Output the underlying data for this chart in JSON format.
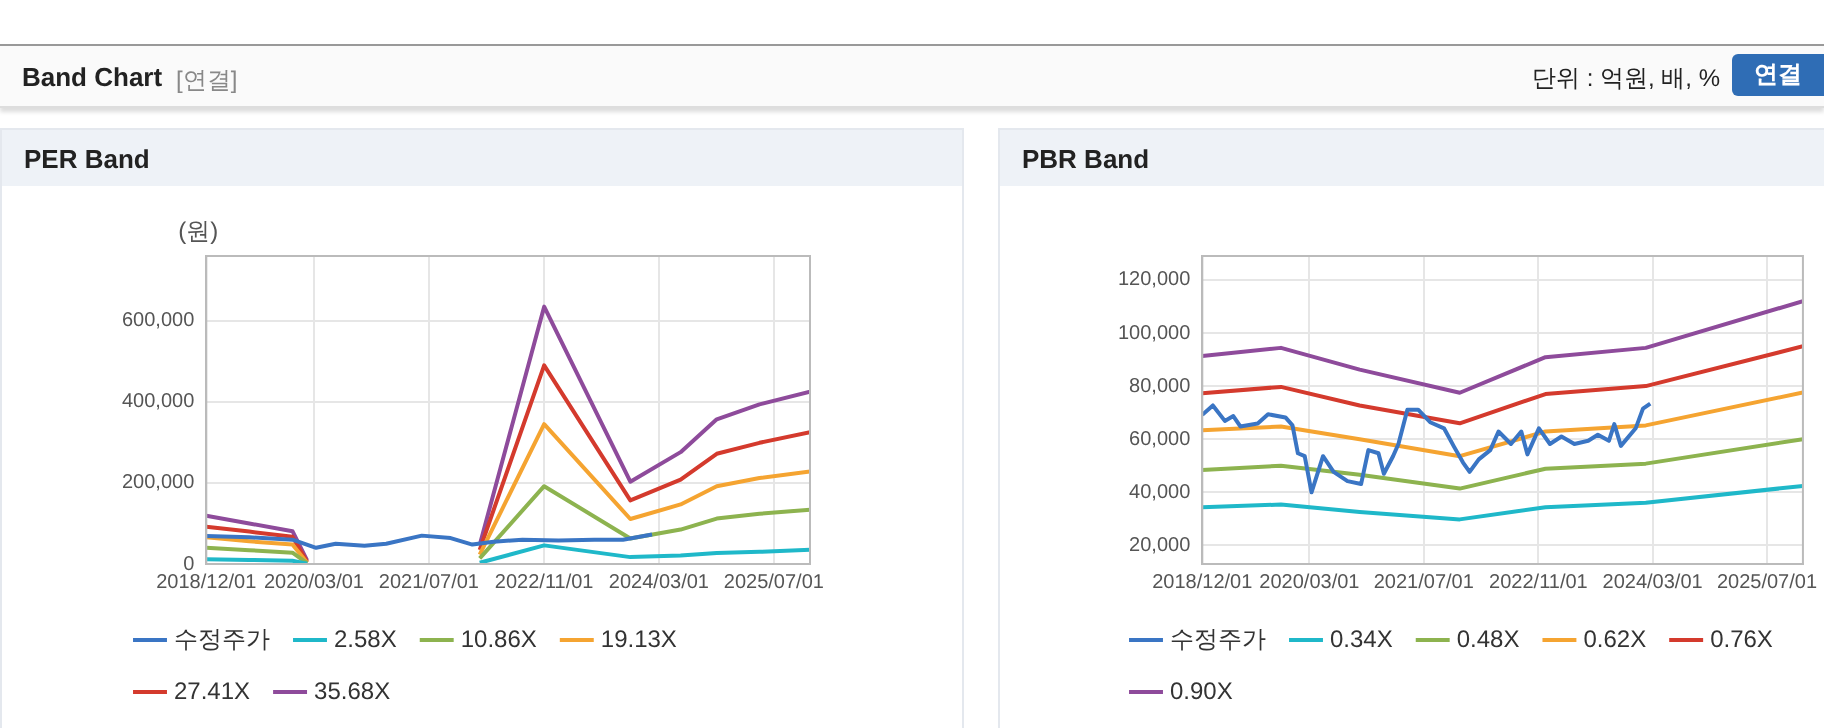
{
  "chart_data": [
    {
      "type": "other",
      "title": "Band Chart",
      "annotations": [
        "[연결]",
        "단위 : 억원, 배, %",
        "연결"
      ]
    },
    {
      "type": "line",
      "title": "PER Band",
      "ylabel": "(원)",
      "xlim": [
        "2018-12-01",
        "2025-12-01"
      ],
      "xticks": [
        {
          "value": "2018-12-01",
          "label": "2018/12/01"
        },
        {
          "value": "2020-03-01",
          "label": "2020/03/01"
        },
        {
          "value": "2021-07-01",
          "label": "2021/07/01"
        },
        {
          "value": "2022-11-01",
          "label": "2022/11/01"
        },
        {
          "value": "2024-03-01",
          "label": "2024/03/01"
        },
        {
          "value": "2025-07-01",
          "label": "2025/07/01"
        }
      ],
      "ylim": [
        0,
        760000
      ],
      "yticks": [
        0,
        {
          "value": 200000,
          "label": "200,000"
        },
        {
          "value": 400000,
          "label": "400,000"
        },
        {
          "value": 600000,
          "label": "600,000"
        }
      ],
      "grid": true,
      "legend": "bottom",
      "marker": "none",
      "series": [
        {
          "name": "수정주가",
          "color": "#3a75c4",
          "x": [
            "2018-12-01",
            "2019-06-01",
            "2019-12-01",
            "2020-03-10",
            "2020-06-01",
            "2020-10-01",
            "2021-01-01",
            "2021-06-01",
            "2021-10-01",
            "2022-01-01",
            "2022-04-01",
            "2022-08-01",
            "2023-01-01",
            "2023-06-01",
            "2023-10-01",
            "2024-02-01"
          ],
          "values": [
            69000,
            66000,
            60000,
            40000,
            50000,
            45000,
            50000,
            70000,
            64000,
            48000,
            55000,
            60000,
            58000,
            60000,
            60000,
            73000
          ]
        },
        {
          "name": "2.58X",
          "color": "#1fb8c9",
          "x": [
            "2018-12-01",
            "2019-06-01",
            "2019-12-01",
            "2020-02-01",
            "2021-01-01",
            "2022-02-01",
            "2022-11-01",
            "2023-11-01",
            "2024-06-01",
            "2024-11-01",
            "2025-05-01",
            "2025-12-01"
          ],
          "values": [
            12000,
            10000,
            8000,
            1000,
            null,
            3000,
            46000,
            17000,
            21000,
            27000,
            30000,
            35000
          ]
        },
        {
          "name": "10.86X",
          "color": "#8db34f",
          "x": [
            "2018-12-01",
            "2019-06-01",
            "2019-12-01",
            "2020-02-01",
            "2021-01-01",
            "2022-02-01",
            "2022-11-01",
            "2023-11-01",
            "2024-06-01",
            "2024-11-01",
            "2025-05-01",
            "2025-12-01"
          ],
          "values": [
            40000,
            34000,
            28000,
            2000,
            null,
            14000,
            192000,
            63000,
            85000,
            112000,
            124000,
            134000
          ]
        },
        {
          "name": "19.13X",
          "color": "#f5a431",
          "x": [
            "2018-12-01",
            "2019-06-01",
            "2019-12-01",
            "2020-02-01",
            "2021-01-01",
            "2022-02-01",
            "2022-11-01",
            "2023-11-01",
            "2024-06-01",
            "2024-11-01",
            "2025-05-01",
            "2025-12-01"
          ],
          "values": [
            66000,
            56000,
            48000,
            3000,
            null,
            23000,
            345000,
            111000,
            147000,
            192000,
            212000,
            228000
          ]
        },
        {
          "name": "27.41X",
          "color": "#d43a2d",
          "x": [
            "2018-12-01",
            "2019-06-01",
            "2019-12-01",
            "2020-02-01",
            "2021-01-01",
            "2022-02-01",
            "2022-11-01",
            "2023-11-01",
            "2024-06-01",
            "2024-11-01",
            "2025-05-01",
            "2025-12-01"
          ],
          "values": [
            92000,
            80000,
            67000,
            5000,
            null,
            35000,
            490000,
            157000,
            208000,
            272000,
            299000,
            325000
          ]
        },
        {
          "name": "35.68X",
          "color": "#8e4b9b",
          "x": [
            "2018-12-01",
            "2019-06-01",
            "2019-12-01",
            "2020-02-01",
            "2021-01-01",
            "2022-02-01",
            "2022-11-01",
            "2023-11-01",
            "2024-06-01",
            "2024-11-01",
            "2025-05-01",
            "2025-12-01"
          ],
          "values": [
            119000,
            100000,
            81000,
            9000,
            null,
            47000,
            635000,
            203000,
            276000,
            357000,
            394000,
            425000
          ]
        }
      ]
    },
    {
      "type": "line",
      "title": "PBR Band",
      "xlim": [
        "2018-12-01",
        "2025-12-01"
      ],
      "xticks": [
        {
          "value": "2018-12-01",
          "label": "2018/12/01"
        },
        {
          "value": "2020-03-01",
          "label": "2020/03/01"
        },
        {
          "value": "2021-07-01",
          "label": "2021/07/01"
        },
        {
          "value": "2022-11-01",
          "label": "2022/11/01"
        },
        {
          "value": "2024-03-01",
          "label": "2024/03/01"
        },
        {
          "value": "2025-07-01",
          "label": "2025/07/01"
        }
      ],
      "ylim": [
        13000,
        129000
      ],
      "yticks": [
        {
          "value": 20000,
          "label": "20,000"
        },
        {
          "value": 40000,
          "label": "40,000"
        },
        {
          "value": 60000,
          "label": "60,000"
        },
        {
          "value": 80000,
          "label": "80,000"
        },
        {
          "value": 100000,
          "label": "100,000"
        },
        {
          "value": 120000,
          "label": "120,000"
        }
      ],
      "grid": true,
      "legend": "bottom",
      "marker": "none",
      "series": [
        {
          "name": "수정주가",
          "color": "#3a75c4",
          "x": [
            "2018-12-01",
            "2019-01-15",
            "2019-03-07",
            "2019-04-12",
            "2019-05-12",
            "2019-07-25",
            "2019-09-07",
            "2019-11-20",
            "2019-12-20",
            "2020-01-12",
            "2020-02-10",
            "2020-03-10",
            "2020-04-28",
            "2020-06-12",
            "2020-08-10",
            "2020-10-07",
            "2020-11-07",
            "2020-12-20",
            "2021-01-12",
            "2021-02-20",
            "2021-03-15",
            "2021-04-22",
            "2021-06-07",
            "2021-07-28",
            "2021-09-25",
            "2021-11-07",
            "2021-12-15",
            "2022-01-12",
            "2022-02-20",
            "2022-04-10",
            "2022-05-15",
            "2022-07-07",
            "2022-08-20",
            "2022-09-15",
            "2022-11-03",
            "2022-12-20",
            "2023-02-07",
            "2023-04-03",
            "2023-06-01",
            "2023-07-12",
            "2023-08-28",
            "2023-09-20",
            "2023-10-18",
            "2023-12-20",
            "2024-01-20",
            "2024-02-20"
          ],
          "values": [
            69200,
            72700,
            66900,
            68700,
            64800,
            65900,
            69400,
            68200,
            65200,
            54700,
            53600,
            40000,
            53600,
            47700,
            44200,
            43100,
            55900,
            54700,
            47000,
            53600,
            58200,
            71100,
            71100,
            66400,
            64100,
            57100,
            51200,
            47700,
            52400,
            55900,
            62900,
            58200,
            62900,
            54300,
            64100,
            58200,
            61000,
            58200,
            59400,
            61700,
            59400,
            65700,
            57500,
            64100,
            71500,
            73400
          ]
        },
        {
          "name": "0.34X",
          "color": "#1fb8c9",
          "x": [
            "2018-12-01",
            "2019-11-01",
            "2020-10-01",
            "2021-12-01",
            "2022-12-01",
            "2024-02-01",
            "2025-12-01"
          ],
          "values": [
            34400,
            35400,
            32600,
            29800,
            34400,
            36100,
            42400
          ]
        },
        {
          "name": "0.48X",
          "color": "#8db34f",
          "x": [
            "2018-12-01",
            "2019-11-01",
            "2020-10-01",
            "2021-12-01",
            "2022-12-01",
            "2024-02-01",
            "2025-12-01"
          ],
          "values": [
            48400,
            50000,
            46600,
            41400,
            48900,
            50800,
            60000
          ]
        },
        {
          "name": "0.62X",
          "color": "#f5a431",
          "x": [
            "2018-12-01",
            "2019-11-01",
            "2020-10-01",
            "2021-12-01",
            "2022-12-01",
            "2024-02-01",
            "2025-12-01"
          ],
          "values": [
            63400,
            64800,
            60000,
            53600,
            62900,
            65200,
            77600
          ]
        },
        {
          "name": "0.76X",
          "color": "#d43a2d",
          "x": [
            "2018-12-01",
            "2019-11-01",
            "2020-10-01",
            "2021-12-01",
            "2022-12-01",
            "2024-02-01",
            "2025-12-01"
          ],
          "values": [
            77300,
            79700,
            72700,
            66000,
            77000,
            80000,
            95000
          ]
        },
        {
          "name": "0.90X",
          "color": "#8e4b9b",
          "x": [
            "2018-12-01",
            "2019-11-01",
            "2020-10-01",
            "2021-12-01",
            "2022-12-01",
            "2024-02-01",
            "2025-12-01"
          ],
          "values": [
            91300,
            94400,
            86200,
            77500,
            90900,
            94400,
            112000
          ]
        }
      ]
    }
  ]
}
